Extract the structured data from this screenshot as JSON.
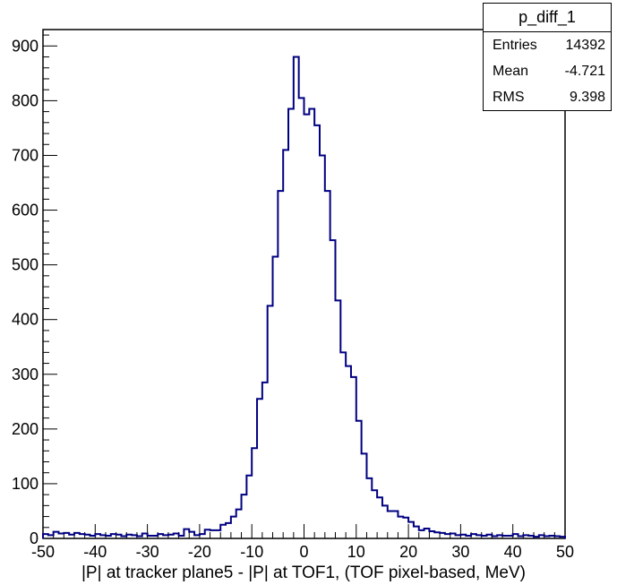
{
  "chart_data": {
    "type": "histogram",
    "title": "p_diff_1",
    "xlabel": "|P| at tracker plane5 - |P| at TOF1, (TOF pixel-based, MeV)",
    "ylabel": "",
    "xlim": [
      -50,
      50
    ],
    "ylim": [
      0,
      930
    ],
    "bin_width": 1,
    "x_ticks": [
      -50,
      -40,
      -30,
      -20,
      -10,
      0,
      10,
      20,
      30,
      40,
      50
    ],
    "x_tick_labels": [
      "-50",
      "-40",
      "-30",
      "-20",
      "-10",
      "0",
      "10",
      "20",
      "30",
      "40",
      "50"
    ],
    "y_ticks": [
      0,
      100,
      200,
      300,
      400,
      500,
      600,
      700,
      800,
      900
    ],
    "y_tick_labels": [
      "0",
      "100",
      "200",
      "300",
      "400",
      "500",
      "600",
      "700",
      "800",
      "900"
    ],
    "line_color": "#000080",
    "grid": false,
    "legend": "none",
    "bin_edges_start": -50,
    "values": [
      8,
      6,
      12,
      9,
      10,
      7,
      10,
      8,
      7,
      5,
      8,
      6,
      5,
      8,
      7,
      4,
      7,
      6,
      4,
      9,
      5,
      5,
      8,
      6,
      7,
      9,
      5,
      17,
      12,
      6,
      8,
      16,
      15,
      15,
      25,
      28,
      40,
      53,
      80,
      115,
      165,
      255,
      285,
      425,
      515,
      635,
      710,
      785,
      880,
      805,
      775,
      785,
      755,
      700,
      635,
      545,
      435,
      340,
      315,
      295,
      215,
      155,
      110,
      88,
      75,
      60,
      50,
      50,
      40,
      38,
      30,
      22,
      15,
      18,
      13,
      11,
      10,
      8,
      9,
      6,
      7,
      5,
      8,
      6,
      5,
      7,
      4,
      6,
      5,
      5,
      8,
      4,
      6,
      5,
      3,
      6,
      4,
      5,
      4,
      3
    ]
  },
  "stats": {
    "title": "p_diff_1",
    "rows": [
      {
        "label": "Entries",
        "value": "14392"
      },
      {
        "label": "Mean",
        "value": "-4.721"
      },
      {
        "label": "RMS",
        "value": "9.398"
      }
    ]
  }
}
